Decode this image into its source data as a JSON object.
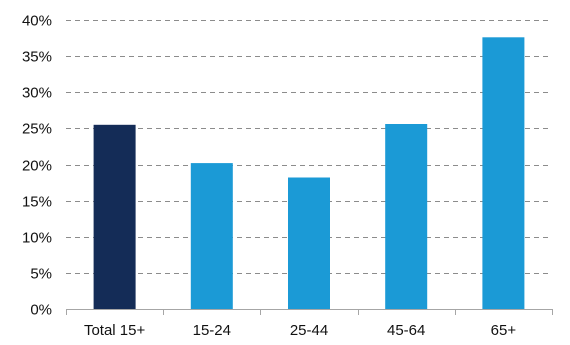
{
  "chart_data": {
    "type": "bar",
    "title": "",
    "xlabel": "",
    "ylabel": "",
    "categories": [
      "Total 15+",
      "15-24",
      "25-44",
      "45-64",
      "65+"
    ],
    "values": [
      25.5,
      20.2,
      18.2,
      25.6,
      37.6
    ],
    "ylim": [
      0,
      40
    ],
    "y_ticks": [
      0,
      5,
      10,
      15,
      20,
      25,
      30,
      35,
      40
    ],
    "y_tick_labels": [
      "0%",
      "5%",
      "10%",
      "15%",
      "20%",
      "25%",
      "30%",
      "35%",
      "40%"
    ],
    "grid": true,
    "grid_style": "dashed",
    "bar_colors": [
      "#142c57",
      "#1b9ad6",
      "#1b9ad6",
      "#1b9ad6",
      "#1b9ad6"
    ]
  }
}
